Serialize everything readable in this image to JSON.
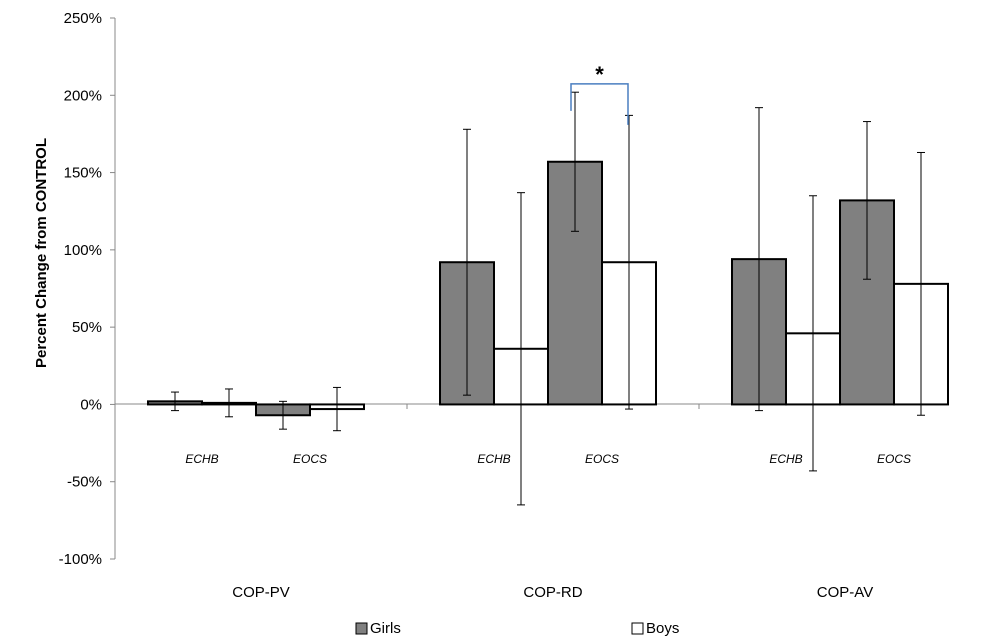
{
  "chart_data": {
    "type": "bar",
    "title": "",
    "xlabel": "",
    "ylabel": "Percent Change from CONTROL",
    "ylim": [
      -100,
      250
    ],
    "yticks": [
      -100,
      -50,
      0,
      50,
      100,
      150,
      200,
      250
    ],
    "ytick_suffix": "%",
    "grid": false,
    "legend_position": "bottom",
    "categories": [
      "COP-PV",
      "COP-RD",
      "COP-AV"
    ],
    "subgroups": [
      "ECHB",
      "EOCS"
    ],
    "series": [
      {
        "name": "Girls",
        "color": "#808080",
        "values": [
          [
            2,
            -7
          ],
          [
            92,
            157
          ],
          [
            94,
            132
          ]
        ],
        "errors": [
          [
            6,
            9
          ],
          [
            86,
            45
          ],
          [
            98,
            51
          ]
        ]
      },
      {
        "name": "Boys",
        "color": "#ffffff",
        "values": [
          [
            1,
            -3
          ],
          [
            36,
            92
          ],
          [
            46,
            78
          ]
        ],
        "errors": [
          [
            9,
            14
          ],
          [
            101,
            95
          ],
          [
            89,
            85
          ]
        ]
      }
    ],
    "annotations": [
      {
        "text": "*",
        "category": "COP-RD",
        "subgroup": "EOCS",
        "bracket_y": 210
      }
    ]
  }
}
